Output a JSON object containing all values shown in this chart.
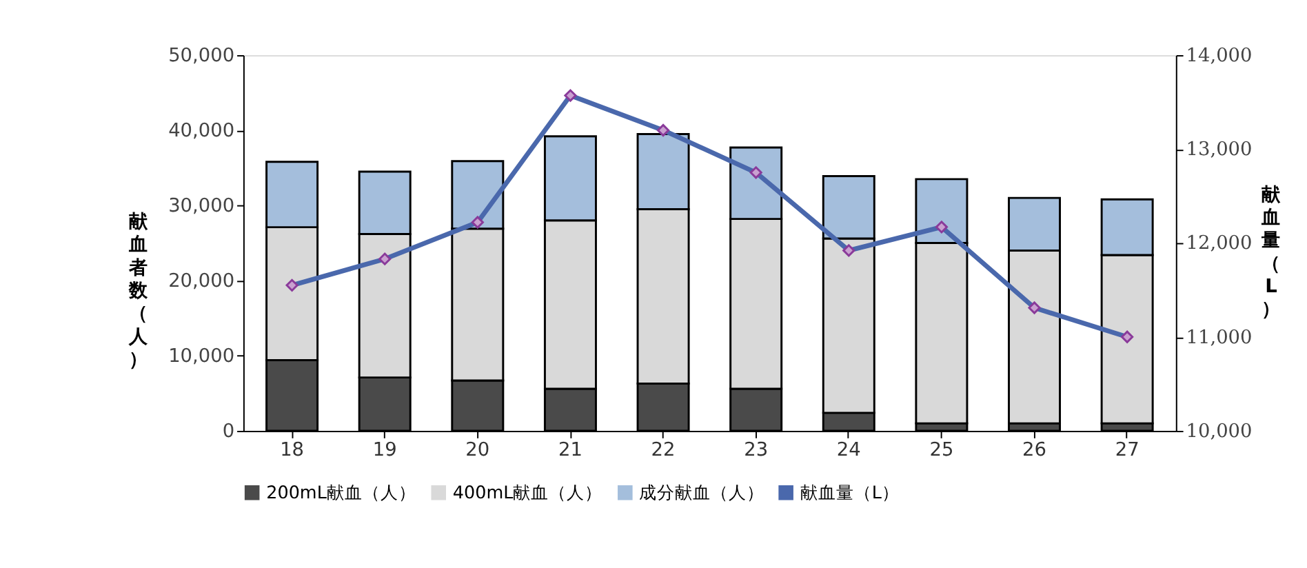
{
  "chart_data": {
    "type": "bar",
    "stacked": true,
    "categories": [
      "18",
      "19",
      "20",
      "21",
      "22",
      "23",
      "24",
      "25",
      "26",
      "27"
    ],
    "ylabel": "献血者数（人）",
    "y2label": "献血量（L）",
    "ylim": [
      0,
      50000
    ],
    "yticks": [
      0,
      {
        "value": 10000,
        "label": "10,000"
      },
      {
        "value": 20000,
        "label": "20,000"
      },
      {
        "value": 30000,
        "label": "30,000"
      },
      {
        "value": 40000,
        "label": "40,000"
      },
      {
        "value": 50000,
        "label": "50,000"
      }
    ],
    "y2lim": [
      10000,
      14000
    ],
    "y2ticks": [
      {
        "value": 10000,
        "label": "10,000"
      },
      {
        "value": 11000,
        "label": "11,000"
      },
      {
        "value": 12000,
        "label": "12,000"
      },
      {
        "value": 13000,
        "label": "13,000"
      },
      {
        "value": 14000,
        "label": "14,000"
      }
    ],
    "grid": false,
    "legend": "bottom",
    "series": [
      {
        "name": "200mL献血（人）",
        "color": "#4a4a4a",
        "values": [
          9400,
          7100,
          6700,
          5600,
          6300,
          5600,
          2400,
          1000,
          1000,
          1000
        ]
      },
      {
        "name": "400mL献血（人）",
        "color": "#d9d9d9",
        "values": [
          17700,
          19100,
          20200,
          22400,
          23200,
          22600,
          23200,
          24000,
          23000,
          22400
        ]
      },
      {
        "name": "成分献血（人）",
        "color": "#a4bedc",
        "values": [
          8700,
          8300,
          9000,
          11200,
          10000,
          9500,
          8300,
          8500,
          7000,
          7400
        ]
      },
      {
        "name": "献血量（L）",
        "type": "line",
        "axis": "y2",
        "color": "#4a68ac",
        "marker": "diamond",
        "line_style": "solid",
        "values": [
          11550,
          11830,
          12220,
          13570,
          13200,
          12750,
          11920,
          12170,
          11310,
          11000
        ]
      }
    ]
  }
}
